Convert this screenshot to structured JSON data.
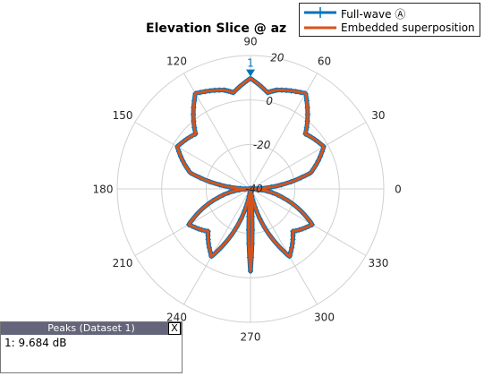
{
  "chart_data": {
    "type": "polar",
    "title": "Elevation Slice @ az",
    "angle_ticks": [
      "0",
      "30",
      "60",
      "90",
      "120",
      "150",
      "180",
      "210",
      "240",
      "270",
      "300",
      "330"
    ],
    "radial_ticks": [
      "20",
      "0",
      "-20",
      "-40"
    ],
    "r_range": [
      -40,
      20
    ],
    "grid": true,
    "legend_position": "top-right",
    "series": [
      {
        "name": "Full-wave Ⓐ",
        "color": "#0072BD",
        "marker": "+",
        "angles_deg": [
          0,
          15,
          30,
          45,
          60,
          75,
          80,
          90,
          100,
          105,
          120,
          135,
          150,
          165,
          180,
          195,
          210,
          225,
          240,
          255,
          262,
          265,
          270,
          275,
          278,
          285,
          300,
          315,
          330,
          345,
          360
        ],
        "values_db": [
          -40,
          -12,
          -2,
          -5,
          9.5,
          6,
          4,
          9.7,
          4,
          6,
          9.5,
          -5,
          -2,
          -12,
          -40,
          -25,
          -8,
          -13,
          -5,
          -30,
          -40,
          -40,
          -3,
          -40,
          -40,
          -30,
          -5,
          -13,
          -8,
          -25,
          -40
        ]
      },
      {
        "name": "Embedded superposition",
        "color": "#D95319",
        "marker": "none",
        "angles_deg": [
          0,
          15,
          30,
          45,
          60,
          75,
          80,
          90,
          100,
          105,
          120,
          135,
          150,
          165,
          180,
          195,
          210,
          225,
          240,
          255,
          262,
          265,
          270,
          275,
          278,
          285,
          300,
          315,
          330,
          345,
          360
        ],
        "values_db": [
          -40,
          -12,
          -2,
          -5,
          9.5,
          6,
          4,
          9.7,
          4,
          6,
          9.5,
          -5,
          -2,
          -12,
          -40,
          -25,
          -8,
          -13,
          -5,
          -30,
          -40,
          -40,
          -3,
          -40,
          -40,
          -30,
          -5,
          -13,
          -8,
          -25,
          -40
        ]
      }
    ],
    "peak_marker": {
      "label": "1",
      "angle_deg": 90,
      "value_db": 9.684
    }
  },
  "peaks_panel": {
    "title": "Peaks (Dataset 1)",
    "close_label": "X",
    "entry": "1: 9.684 dB"
  }
}
